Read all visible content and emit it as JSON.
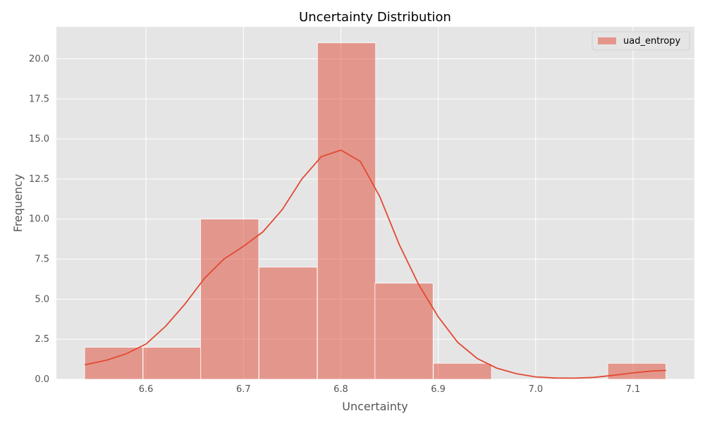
{
  "chart_data": {
    "type": "bar",
    "title": "Uncertainty Distribution",
    "xlabel": "Uncertainty",
    "ylabel": "Frequency",
    "xlim": [
      6.508,
      7.163
    ],
    "ylim": [
      0,
      22
    ],
    "x_ticks": [
      "6.6",
      "6.7",
      "6.8",
      "6.9",
      "7.0",
      "7.1"
    ],
    "y_ticks": [
      "0.0",
      "2.5",
      "5.0",
      "7.5",
      "10.0",
      "12.5",
      "15.0",
      "17.5",
      "20.0"
    ],
    "grid": true,
    "legend_position": "top-right",
    "series": [
      {
        "name": "uad_entropy",
        "bin_width": 0.0597,
        "bin_starts": [
          6.537,
          6.597,
          6.656,
          6.716,
          6.776,
          6.835,
          6.895,
          6.955,
          7.014,
          7.074
        ],
        "values": [
          2,
          2,
          10,
          7,
          21,
          6,
          1,
          0,
          0,
          1
        ],
        "bar_color": "#E24A33",
        "kde": {
          "x": [
            6.537,
            6.56,
            6.58,
            6.6,
            6.62,
            6.64,
            6.66,
            6.68,
            6.7,
            6.72,
            6.74,
            6.76,
            6.78,
            6.8,
            6.82,
            6.84,
            6.86,
            6.88,
            6.9,
            6.92,
            6.94,
            6.96,
            6.98,
            7.0,
            7.02,
            7.04,
            7.06,
            7.08,
            7.1,
            7.12,
            7.134
          ],
          "y": [
            0.9,
            1.2,
            1.6,
            2.2,
            3.3,
            4.7,
            6.3,
            7.5,
            8.3,
            9.2,
            10.6,
            12.5,
            13.9,
            14.3,
            13.6,
            11.4,
            8.4,
            5.9,
            3.9,
            2.3,
            1.3,
            0.7,
            0.35,
            0.15,
            0.08,
            0.07,
            0.12,
            0.25,
            0.4,
            0.52,
            0.55
          ]
        },
        "kde_color": "#E24A33"
      }
    ]
  }
}
